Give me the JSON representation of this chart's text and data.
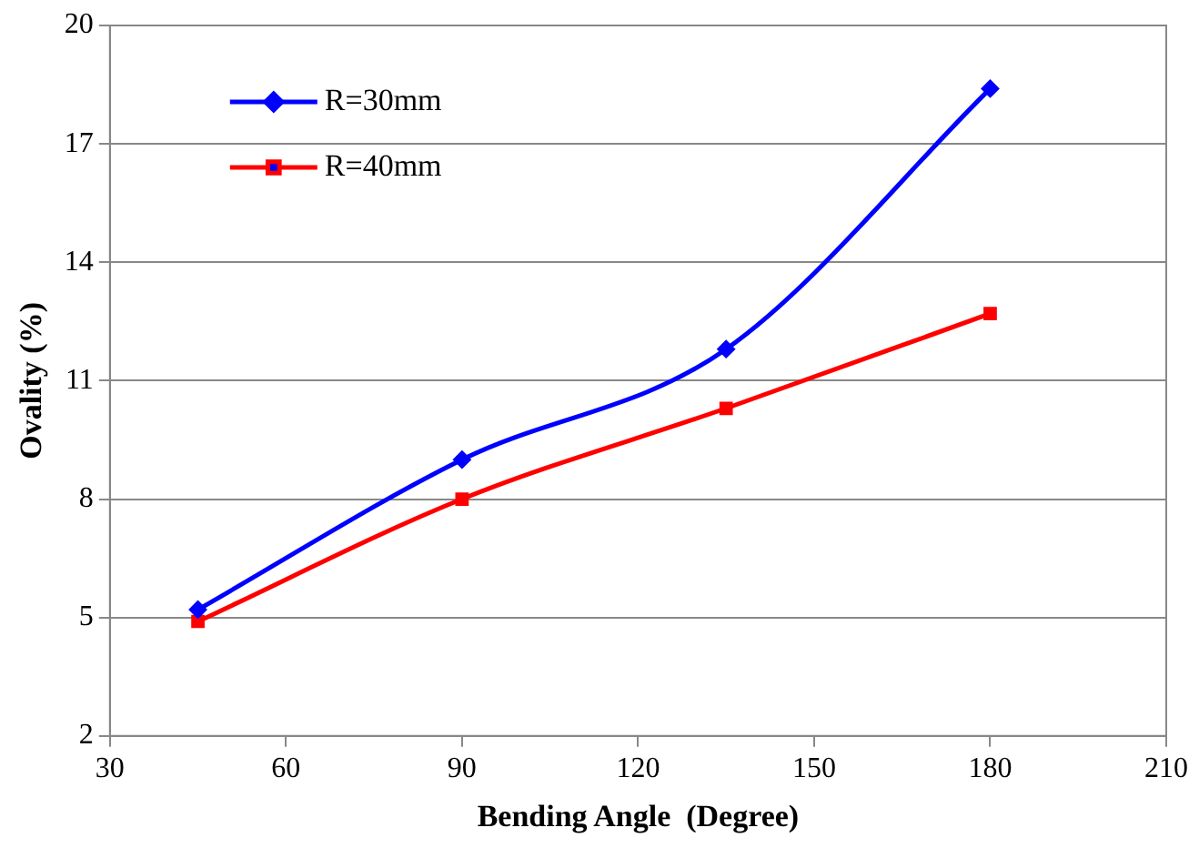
{
  "chart_data": {
    "type": "line",
    "xlabel": "Bending Angle  (Degree)",
    "ylabel": "Ovality (%)",
    "x": [
      45,
      90,
      135,
      180
    ],
    "series": [
      {
        "name": "R=30mm",
        "color": "#0000ff",
        "values": [
          5.2,
          9.0,
          11.8,
          18.4
        ],
        "marker": "diamond"
      },
      {
        "name": "R=40mm",
        "color": "#ff0000",
        "values": [
          4.9,
          8.0,
          10.3,
          12.7
        ],
        "marker": "square"
      }
    ],
    "xlim": [
      30,
      210
    ],
    "xticks": [
      30,
      60,
      90,
      120,
      150,
      180,
      210
    ],
    "ylim": [
      2,
      20
    ],
    "yticks": [
      2,
      5,
      8,
      11,
      14,
      17,
      20
    ],
    "grid": "y",
    "legend": "top left",
    "line_style": "solid"
  }
}
